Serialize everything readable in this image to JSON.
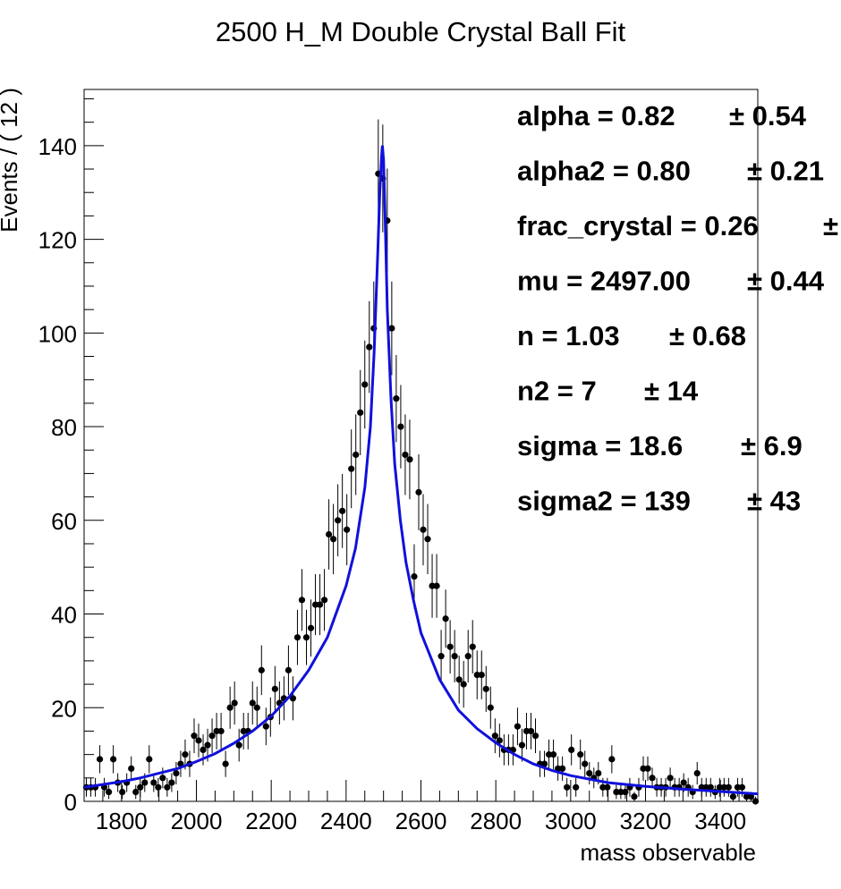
{
  "chart_data": {
    "type": "scatter",
    "title": "2500 H_M Double Crystal Ball Fit",
    "xlabel": "mass observable",
    "ylabel": "Events / ( 12 )",
    "xlim": [
      1700,
      3500
    ],
    "ylim": [
      0,
      152
    ],
    "x_ticks": [
      1800,
      2000,
      2200,
      2400,
      2600,
      2800,
      3000,
      3200,
      3400
    ],
    "y_ticks": [
      0,
      20,
      40,
      60,
      80,
      100,
      120,
      140
    ],
    "grid": false,
    "legend": "none",
    "bin_width": 12,
    "fit_params": [
      {
        "label": "alpha =  0.82",
        "err": "± 0.54"
      },
      {
        "label": "alpha2 =  0.80",
        "err": "± 0.21"
      },
      {
        "label": "frac_crystal =  0.26",
        "err": "±"
      },
      {
        "label": "mu =  2497.00",
        "err": "± 0.44"
      },
      {
        "label": "n =  1.03",
        "err": "± 0.68"
      },
      {
        "label": "n2 =  7",
        "err": "± 14"
      },
      {
        "label": "sigma =  18.6",
        "err": "± 6.9"
      },
      {
        "label": "sigma2 =  139",
        "err": "± 43"
      }
    ],
    "fit_curve": {
      "color": "#1010dd",
      "x": [
        1700,
        1750,
        1800,
        1850,
        1900,
        1950,
        2000,
        2050,
        2100,
        2150,
        2200,
        2250,
        2300,
        2350,
        2400,
        2425,
        2450,
        2465,
        2475,
        2485,
        2490,
        2495,
        2497,
        2500,
        2505,
        2510,
        2520,
        2530,
        2545,
        2560,
        2580,
        2600,
        2650,
        2700,
        2750,
        2800,
        2850,
        2900,
        2950,
        3000,
        3100,
        3200,
        3300,
        3400,
        3500
      ],
      "y": [
        3,
        3.6,
        4.2,
        5,
        6,
        7,
        8.5,
        10.2,
        12.4,
        15,
        18.2,
        22.5,
        28,
        35,
        46,
        54,
        67,
        80,
        96,
        118,
        130,
        138,
        140,
        137,
        122,
        105,
        86,
        72,
        60,
        51,
        43,
        36,
        26,
        19.5,
        15.5,
        12.5,
        10,
        8,
        6.6,
        5.5,
        4,
        3.2,
        2.6,
        2.1,
        1.6
      ]
    },
    "series": [
      {
        "name": "data",
        "color": "#000000",
        "x": [
          1706,
          1718,
          1730,
          1742,
          1754,
          1766,
          1778,
          1790,
          1802,
          1814,
          1826,
          1838,
          1850,
          1862,
          1874,
          1886,
          1898,
          1910,
          1922,
          1934,
          1946,
          1958,
          1970,
          1982,
          1994,
          2006,
          2018,
          2030,
          2042,
          2054,
          2066,
          2078,
          2090,
          2102,
          2114,
          2126,
          2138,
          2150,
          2162,
          2174,
          2186,
          2198,
          2210,
          2222,
          2234,
          2246,
          2258,
          2270,
          2282,
          2294,
          2306,
          2318,
          2330,
          2342,
          2354,
          2366,
          2378,
          2390,
          2402,
          2414,
          2426,
          2438,
          2450,
          2462,
          2474,
          2486,
          2498,
          2510,
          2522,
          2534,
          2546,
          2558,
          2570,
          2582,
          2594,
          2606,
          2618,
          2630,
          2642,
          2654,
          2666,
          2678,
          2690,
          2702,
          2714,
          2726,
          2738,
          2750,
          2762,
          2774,
          2786,
          2798,
          2810,
          2822,
          2834,
          2846,
          2858,
          2870,
          2882,
          2894,
          2906,
          2918,
          2930,
          2942,
          2954,
          2966,
          2978,
          2990,
          3002,
          3014,
          3026,
          3038,
          3050,
          3062,
          3074,
          3086,
          3098,
          3110,
          3122,
          3134,
          3146,
          3158,
          3170,
          3182,
          3194,
          3206,
          3218,
          3230,
          3242,
          3254,
          3266,
          3278,
          3290,
          3302,
          3314,
          3326,
          3338,
          3350,
          3362,
          3374,
          3386,
          3398,
          3410,
          3422,
          3434,
          3446,
          3458,
          3470,
          3482,
          3494
        ],
        "y": [
          3,
          3,
          3,
          9,
          3,
          2,
          9,
          4,
          2,
          4,
          7,
          2,
          3,
          4,
          9,
          4,
          3,
          5,
          3,
          4,
          6,
          8,
          10,
          8,
          14,
          13,
          11,
          12,
          14,
          15,
          15,
          8,
          20,
          21,
          12,
          15,
          15,
          21,
          20,
          28,
          16,
          18,
          24,
          21,
          22,
          28,
          22,
          35,
          43,
          35,
          37,
          42,
          42,
          43,
          57,
          56,
          60,
          62,
          58,
          71,
          74,
          83,
          89,
          97,
          101,
          134,
          133,
          124,
          101,
          86,
          80,
          74,
          73,
          48,
          66,
          58,
          56,
          46,
          46,
          31,
          39,
          33,
          31,
          26,
          25,
          31,
          33,
          27,
          27,
          24,
          20,
          14,
          13,
          11,
          11,
          11,
          16,
          12,
          15,
          15,
          14,
          8,
          8,
          10,
          10,
          7,
          7,
          3,
          11,
          3,
          10,
          8,
          6,
          5,
          6,
          3,
          3,
          9,
          2,
          2,
          2,
          3,
          1,
          3,
          7,
          7,
          5,
          3,
          3,
          3,
          5,
          3,
          3,
          4,
          3,
          2,
          6,
          3,
          3,
          3,
          2,
          3,
          3,
          3,
          1,
          3,
          3,
          1,
          1,
          0
        ],
        "err": [
          2,
          2,
          2,
          3,
          2,
          1.5,
          3,
          2,
          1.5,
          2,
          2.6,
          1.5,
          2,
          2,
          3,
          2,
          2,
          2.2,
          2,
          2,
          2.4,
          2.8,
          3.2,
          2.8,
          3.7,
          3.6,
          3.3,
          3.5,
          3.7,
          3.9,
          3.9,
          2.8,
          4.5,
          4.6,
          3.5,
          3.9,
          3.9,
          4.6,
          4.5,
          5.3,
          4,
          4.2,
          4.9,
          4.6,
          4.7,
          5.3,
          4.7,
          5.9,
          6.6,
          5.9,
          6.1,
          6.5,
          6.5,
          6.6,
          7.5,
          7.5,
          7.7,
          7.9,
          7.6,
          8.4,
          8.6,
          9.1,
          9.4,
          9.8,
          10,
          11.6,
          11.5,
          11.1,
          10,
          9.3,
          8.9,
          8.6,
          8.5,
          6.9,
          8.1,
          7.6,
          7.5,
          6.8,
          6.8,
          5.6,
          6.2,
          5.7,
          5.6,
          5.1,
          5,
          5.6,
          5.7,
          5.2,
          5.2,
          4.9,
          4.5,
          3.7,
          3.6,
          3.3,
          3.3,
          3.3,
          4,
          3.5,
          3.9,
          3.9,
          3.7,
          2.8,
          2.8,
          3.2,
          3.2,
          2.6,
          2.6,
          2,
          3.3,
          2,
          3.2,
          2.8,
          2.4,
          2.2,
          2.4,
          2,
          2,
          3,
          1.5,
          1.5,
          1.5,
          2,
          1,
          2,
          2.6,
          2.6,
          2.2,
          2,
          2,
          2,
          2.2,
          2,
          2,
          2,
          2,
          1.5,
          2.4,
          2,
          2,
          2,
          1.5,
          2,
          2,
          2,
          1,
          2,
          2,
          1,
          1,
          1
        ]
      }
    ]
  }
}
